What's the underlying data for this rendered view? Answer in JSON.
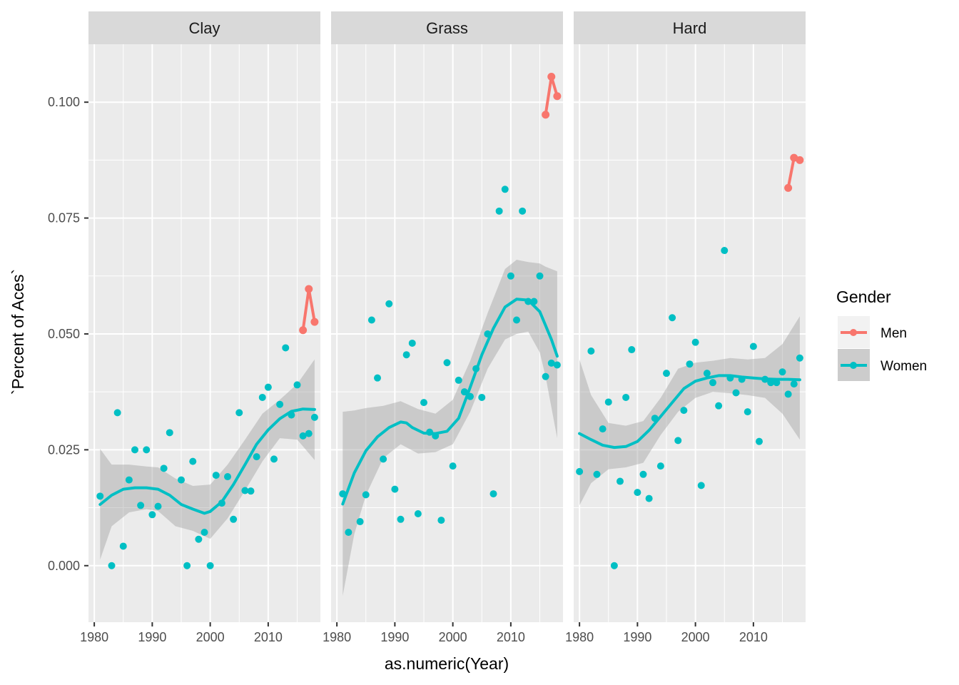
{
  "chart_data": {
    "type": "scatter",
    "facets": [
      "Clay",
      "Grass",
      "Hard"
    ],
    "xlabel": "as.numeric(Year)",
    "ylabel": "`Percent of Aces`",
    "xlim": [
      1979,
      2019
    ],
    "ylim": [
      -0.0122,
      0.1125
    ],
    "x_ticks": [
      1980,
      1990,
      2000,
      2010
    ],
    "y_ticks": [
      0.0,
      0.025,
      0.05,
      0.075,
      0.1
    ],
    "y_tick_labels": [
      "0.000",
      "0.025",
      "0.050",
      "0.075",
      "0.100"
    ],
    "x_minor_ticks": [
      1985,
      1995,
      2005,
      2015
    ],
    "y_minor_ticks": [
      0.0125,
      0.0375,
      0.0625,
      0.0875
    ],
    "grid": true,
    "legend": {
      "title": "Gender",
      "position": "right",
      "entries": [
        {
          "name": "Men",
          "color": "#F8766D"
        },
        {
          "name": "Women",
          "color": "#00BFC4"
        }
      ]
    },
    "panels": [
      {
        "facet": "Clay",
        "women_points": [
          [
            1981,
            0.015
          ],
          [
            1983,
            0.0
          ],
          [
            1984,
            0.033
          ],
          [
            1985,
            0.0042
          ],
          [
            1986,
            0.0185
          ],
          [
            1987,
            0.025
          ],
          [
            1988,
            0.013
          ],
          [
            1989,
            0.025
          ],
          [
            1990,
            0.011
          ],
          [
            1991,
            0.0128
          ],
          [
            1992,
            0.021
          ],
          [
            1993,
            0.0287
          ],
          [
            1995,
            0.0185
          ],
          [
            1996,
            0.0
          ],
          [
            1997,
            0.0225
          ],
          [
            1998,
            0.0057
          ],
          [
            1999,
            0.0072
          ],
          [
            2000,
            0.0
          ],
          [
            2001,
            0.0195
          ],
          [
            2002,
            0.0135
          ],
          [
            2003,
            0.0192
          ],
          [
            2004,
            0.01
          ],
          [
            2005,
            0.033
          ],
          [
            2006,
            0.0162
          ],
          [
            2007,
            0.0161
          ],
          [
            2008,
            0.0235
          ],
          [
            2009,
            0.0363
          ],
          [
            2010,
            0.0385
          ],
          [
            2011,
            0.023
          ],
          [
            2012,
            0.0348
          ],
          [
            2013,
            0.047
          ],
          [
            2014,
            0.0325
          ],
          [
            2015,
            0.039
          ],
          [
            2016,
            0.028
          ],
          [
            2017,
            0.0285
          ],
          [
            2018,
            0.032
          ]
        ],
        "women_smooth": [
          [
            1981,
            0.0132
          ],
          [
            1983,
            0.0152
          ],
          [
            1985,
            0.0165
          ],
          [
            1987,
            0.0168
          ],
          [
            1989,
            0.0168
          ],
          [
            1991,
            0.0165
          ],
          [
            1993,
            0.0152
          ],
          [
            1995,
            0.0132
          ],
          [
            1997,
            0.0122
          ],
          [
            1999,
            0.0113
          ],
          [
            2000,
            0.0117
          ],
          [
            2002,
            0.0138
          ],
          [
            2004,
            0.0175
          ],
          [
            2006,
            0.0218
          ],
          [
            2008,
            0.0262
          ],
          [
            2010,
            0.0293
          ],
          [
            2012,
            0.0317
          ],
          [
            2014,
            0.0333
          ],
          [
            2016,
            0.0338
          ],
          [
            2018,
            0.0337
          ]
        ],
        "women_band": [
          [
            1981,
            0.0013,
            0.0252
          ],
          [
            1983,
            0.0085,
            0.0218
          ],
          [
            1986,
            0.0115,
            0.0218
          ],
          [
            1989,
            0.0122,
            0.0214
          ],
          [
            1991,
            0.0118,
            0.0212
          ],
          [
            1994,
            0.0085,
            0.0188
          ],
          [
            1997,
            0.0075,
            0.0172
          ],
          [
            2000,
            0.0058,
            0.0175
          ],
          [
            2003,
            0.0102,
            0.0218
          ],
          [
            2006,
            0.0162,
            0.0272
          ],
          [
            2009,
            0.0225,
            0.0328
          ],
          [
            2012,
            0.0275,
            0.0358
          ],
          [
            2015,
            0.0272,
            0.0392
          ],
          [
            2018,
            0.0228,
            0.0445
          ]
        ],
        "men_points": [
          [
            2016,
            0.0508
          ],
          [
            2017,
            0.0597
          ],
          [
            2018,
            0.0526
          ]
        ]
      },
      {
        "facet": "Grass",
        "women_points": [
          [
            1981,
            0.0155
          ],
          [
            1982,
            0.0072
          ],
          [
            1984,
            0.0095
          ],
          [
            1985,
            0.0153
          ],
          [
            1986,
            0.053
          ],
          [
            1987,
            0.0405
          ],
          [
            1988,
            0.023
          ],
          [
            1989,
            0.0565
          ],
          [
            1990,
            0.0165
          ],
          [
            1991,
            0.01
          ],
          [
            1992,
            0.0455
          ],
          [
            1993,
            0.048
          ],
          [
            1994,
            0.0112
          ],
          [
            1995,
            0.0352
          ],
          [
            1996,
            0.0288
          ],
          [
            1997,
            0.028
          ],
          [
            1998,
            0.0098
          ],
          [
            1999,
            0.0438
          ],
          [
            2000,
            0.0215
          ],
          [
            2001,
            0.04
          ],
          [
            2002,
            0.0375
          ],
          [
            2003,
            0.0365
          ],
          [
            2004,
            0.0425
          ],
          [
            2005,
            0.0363
          ],
          [
            2006,
            0.05
          ],
          [
            2007,
            0.0155
          ],
          [
            2008,
            0.0765
          ],
          [
            2009,
            0.0812
          ],
          [
            2010,
            0.0625
          ],
          [
            2011,
            0.053
          ],
          [
            2012,
            0.0765
          ],
          [
            2013,
            0.057
          ],
          [
            2014,
            0.057
          ],
          [
            2015,
            0.0625
          ],
          [
            2016,
            0.0408
          ],
          [
            2017,
            0.0437
          ],
          [
            2018,
            0.0433
          ]
        ],
        "women_smooth": [
          [
            1981,
            0.0133
          ],
          [
            1983,
            0.02
          ],
          [
            1985,
            0.0248
          ],
          [
            1987,
            0.0278
          ],
          [
            1989,
            0.0298
          ],
          [
            1991,
            0.031
          ],
          [
            1992,
            0.0308
          ],
          [
            1993,
            0.0298
          ],
          [
            1995,
            0.0286
          ],
          [
            1997,
            0.0285
          ],
          [
            1999,
            0.029
          ],
          [
            2001,
            0.0318
          ],
          [
            2003,
            0.0385
          ],
          [
            2005,
            0.0455
          ],
          [
            2007,
            0.0512
          ],
          [
            2009,
            0.0558
          ],
          [
            2011,
            0.0575
          ],
          [
            2013,
            0.0573
          ],
          [
            2015,
            0.0548
          ],
          [
            2017,
            0.0488
          ],
          [
            2018,
            0.0452
          ]
        ],
        "women_band": [
          [
            1981,
            -0.0065,
            0.0332
          ],
          [
            1983,
            0.0068,
            0.0335
          ],
          [
            1985,
            0.0152,
            0.034
          ],
          [
            1988,
            0.0232,
            0.0345
          ],
          [
            1991,
            0.0262,
            0.0355
          ],
          [
            1994,
            0.0242,
            0.0338
          ],
          [
            1997,
            0.0245,
            0.0328
          ],
          [
            2000,
            0.0262,
            0.0358
          ],
          [
            2003,
            0.0332,
            0.0442
          ],
          [
            2006,
            0.0425,
            0.0545
          ],
          [
            2009,
            0.0488,
            0.064
          ],
          [
            2011,
            0.05,
            0.066
          ],
          [
            2013,
            0.0505,
            0.0655
          ],
          [
            2015,
            0.046,
            0.0652
          ],
          [
            2016,
            0.0408,
            0.0645
          ],
          [
            2018,
            0.0275,
            0.0635
          ]
        ],
        "men_points": [
          [
            2016,
            0.0973
          ],
          [
            2017,
            0.1055
          ],
          [
            2018,
            0.1013
          ]
        ]
      },
      {
        "facet": "Hard",
        "women_points": [
          [
            1980,
            0.0203
          ],
          [
            1982,
            0.0463
          ],
          [
            1983,
            0.0197
          ],
          [
            1984,
            0.0295
          ],
          [
            1985,
            0.0353
          ],
          [
            1986,
            0.0
          ],
          [
            1987,
            0.0182
          ],
          [
            1988,
            0.0363
          ],
          [
            1989,
            0.0466
          ],
          [
            1990,
            0.0158
          ],
          [
            1991,
            0.0197
          ],
          [
            1992,
            0.0145
          ],
          [
            1993,
            0.0318
          ],
          [
            1994,
            0.0215
          ],
          [
            1995,
            0.0415
          ],
          [
            1996,
            0.0535
          ],
          [
            1997,
            0.027
          ],
          [
            1998,
            0.0335
          ],
          [
            1999,
            0.0435
          ],
          [
            2000,
            0.0482
          ],
          [
            2001,
            0.0173
          ],
          [
            2002,
            0.0415
          ],
          [
            2003,
            0.0395
          ],
          [
            2004,
            0.0345
          ],
          [
            2005,
            0.068
          ],
          [
            2006,
            0.0405
          ],
          [
            2007,
            0.0373
          ],
          [
            2008,
            0.0402
          ],
          [
            2009,
            0.0332
          ],
          [
            2010,
            0.0473
          ],
          [
            2011,
            0.0268
          ],
          [
            2012,
            0.0402
          ],
          [
            2013,
            0.0395
          ],
          [
            2014,
            0.0395
          ],
          [
            2015,
            0.0418
          ],
          [
            2016,
            0.037
          ],
          [
            2017,
            0.0392
          ],
          [
            2018,
            0.0448
          ]
        ],
        "women_smooth": [
          [
            1980,
            0.0285
          ],
          [
            1982,
            0.0272
          ],
          [
            1984,
            0.026
          ],
          [
            1986,
            0.0255
          ],
          [
            1988,
            0.0257
          ],
          [
            1990,
            0.0268
          ],
          [
            1992,
            0.0292
          ],
          [
            1994,
            0.0322
          ],
          [
            1996,
            0.0352
          ],
          [
            1998,
            0.0382
          ],
          [
            2000,
            0.0398
          ],
          [
            2002,
            0.0405
          ],
          [
            2004,
            0.041
          ],
          [
            2006,
            0.041
          ],
          [
            2008,
            0.0407
          ],
          [
            2010,
            0.0405
          ],
          [
            2012,
            0.0403
          ],
          [
            2014,
            0.0402
          ],
          [
            2016,
            0.0402
          ],
          [
            2018,
            0.0401
          ]
        ],
        "women_band": [
          [
            1980,
            0.013,
            0.0445
          ],
          [
            1982,
            0.0178,
            0.0368
          ],
          [
            1985,
            0.0208,
            0.0308
          ],
          [
            1988,
            0.0212,
            0.0302
          ],
          [
            1991,
            0.0222,
            0.0312
          ],
          [
            1994,
            0.0282,
            0.0362
          ],
          [
            1997,
            0.0332,
            0.0425
          ],
          [
            2000,
            0.0362,
            0.0438
          ],
          [
            2003,
            0.0375,
            0.0442
          ],
          [
            2006,
            0.0372,
            0.0448
          ],
          [
            2009,
            0.0368,
            0.0445
          ],
          [
            2012,
            0.0362,
            0.0448
          ],
          [
            2015,
            0.0328,
            0.0478
          ],
          [
            2018,
            0.0272,
            0.0538
          ]
        ],
        "men_points": [
          [
            2016,
            0.0815
          ],
          [
            2017,
            0.088
          ],
          [
            2018,
            0.0875
          ]
        ]
      }
    ]
  }
}
